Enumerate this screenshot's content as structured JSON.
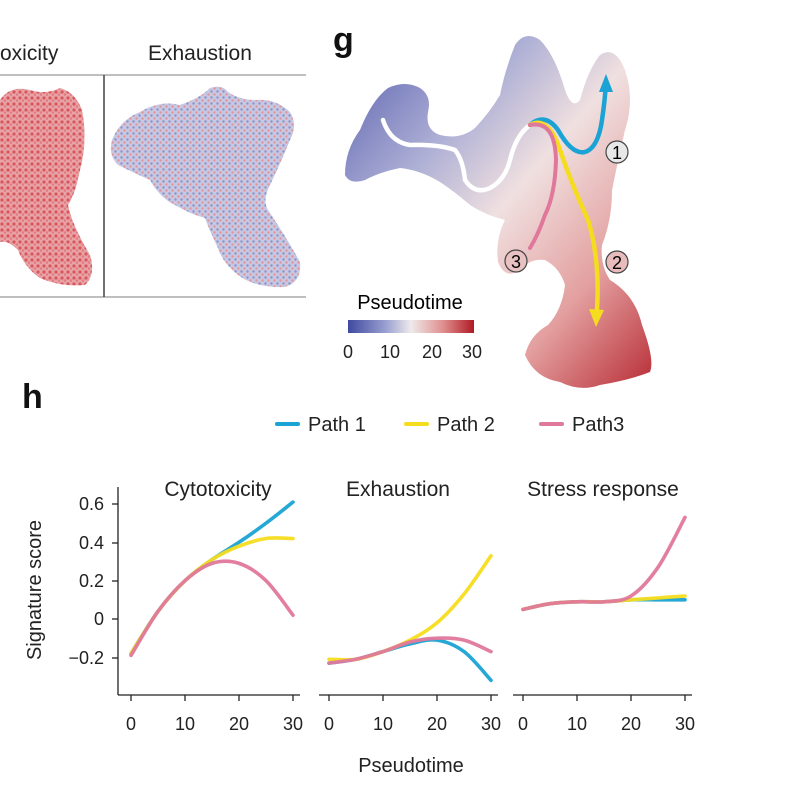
{
  "top_left": {
    "umap_titles": [
      "oxicity",
      "Exhaustion"
    ]
  },
  "panel_g": {
    "letter": "g",
    "path_markers": [
      "1",
      "2",
      "3"
    ],
    "colorbar": {
      "label": "Pseudotime",
      "ticks": [
        "0",
        "10",
        "20",
        "30"
      ],
      "colors": [
        "#3f4aa0",
        "#9aa0d0",
        "#eeeaea",
        "#e09090",
        "#b01a25"
      ]
    }
  },
  "panel_h": {
    "letter": "h",
    "legend": [
      {
        "name": "Path 1",
        "color": "#1aa3d4"
      },
      {
        "name": "Path 2",
        "color": "#f5dc1e"
      },
      {
        "name": "Path3",
        "color": "#e0789b"
      }
    ],
    "y_ticks": [
      "0.6",
      "0.4",
      "0.2",
      "0",
      "−0.2"
    ],
    "ylabel": "Signature score",
    "xlabel": "Pseudotime",
    "x_ticks": [
      "0",
      "10",
      "20",
      "30"
    ]
  },
  "chart_data": [
    {
      "type": "line",
      "title": "Cytotoxicity",
      "xlabel": "Pseudotime",
      "ylabel": "Signature score",
      "xlim": [
        0,
        31
      ],
      "ylim": [
        -0.4,
        0.7
      ],
      "x": [
        0,
        5,
        10,
        15,
        20,
        25,
        30
      ],
      "series": [
        {
          "name": "Path 1",
          "values": [
            -0.18,
            0.04,
            0.2,
            0.31,
            0.4,
            0.5,
            0.61
          ]
        },
        {
          "name": "Path 2",
          "values": [
            -0.18,
            0.04,
            0.2,
            0.31,
            0.38,
            0.42,
            0.42
          ]
        },
        {
          "name": "Path3",
          "values": [
            -0.19,
            0.04,
            0.2,
            0.29,
            0.29,
            0.2,
            0.02
          ]
        }
      ]
    },
    {
      "type": "line",
      "title": "Exhaustion",
      "xlabel": "Pseudotime",
      "ylabel": "Signature score",
      "xlim": [
        0,
        31
      ],
      "ylim": [
        -0.4,
        0.7
      ],
      "x": [
        0,
        5,
        10,
        15,
        20,
        25,
        30
      ],
      "series": [
        {
          "name": "Path 1",
          "values": [
            -0.23,
            -0.21,
            -0.17,
            -0.13,
            -0.11,
            -0.17,
            -0.32
          ]
        },
        {
          "name": "Path 2",
          "values": [
            -0.21,
            -0.21,
            -0.17,
            -0.11,
            -0.02,
            0.13,
            0.33
          ]
        },
        {
          "name": "Path3",
          "values": [
            -0.23,
            -0.21,
            -0.17,
            -0.12,
            -0.1,
            -0.11,
            -0.17
          ]
        }
      ]
    },
    {
      "type": "line",
      "title": "Stress response",
      "xlabel": "Pseudotime",
      "ylabel": "Signature score",
      "xlim": [
        0,
        31
      ],
      "ylim": [
        -0.4,
        0.7
      ],
      "x": [
        0,
        5,
        10,
        15,
        20,
        25,
        30
      ],
      "series": [
        {
          "name": "Path 1",
          "values": [
            0.05,
            0.08,
            0.09,
            0.09,
            0.1,
            0.1,
            0.1
          ]
        },
        {
          "name": "Path 2",
          "values": [
            0.05,
            0.08,
            0.09,
            0.09,
            0.1,
            0.11,
            0.12
          ]
        },
        {
          "name": "Path3",
          "values": [
            0.05,
            0.08,
            0.09,
            0.09,
            0.12,
            0.27,
            0.53
          ]
        }
      ]
    }
  ]
}
